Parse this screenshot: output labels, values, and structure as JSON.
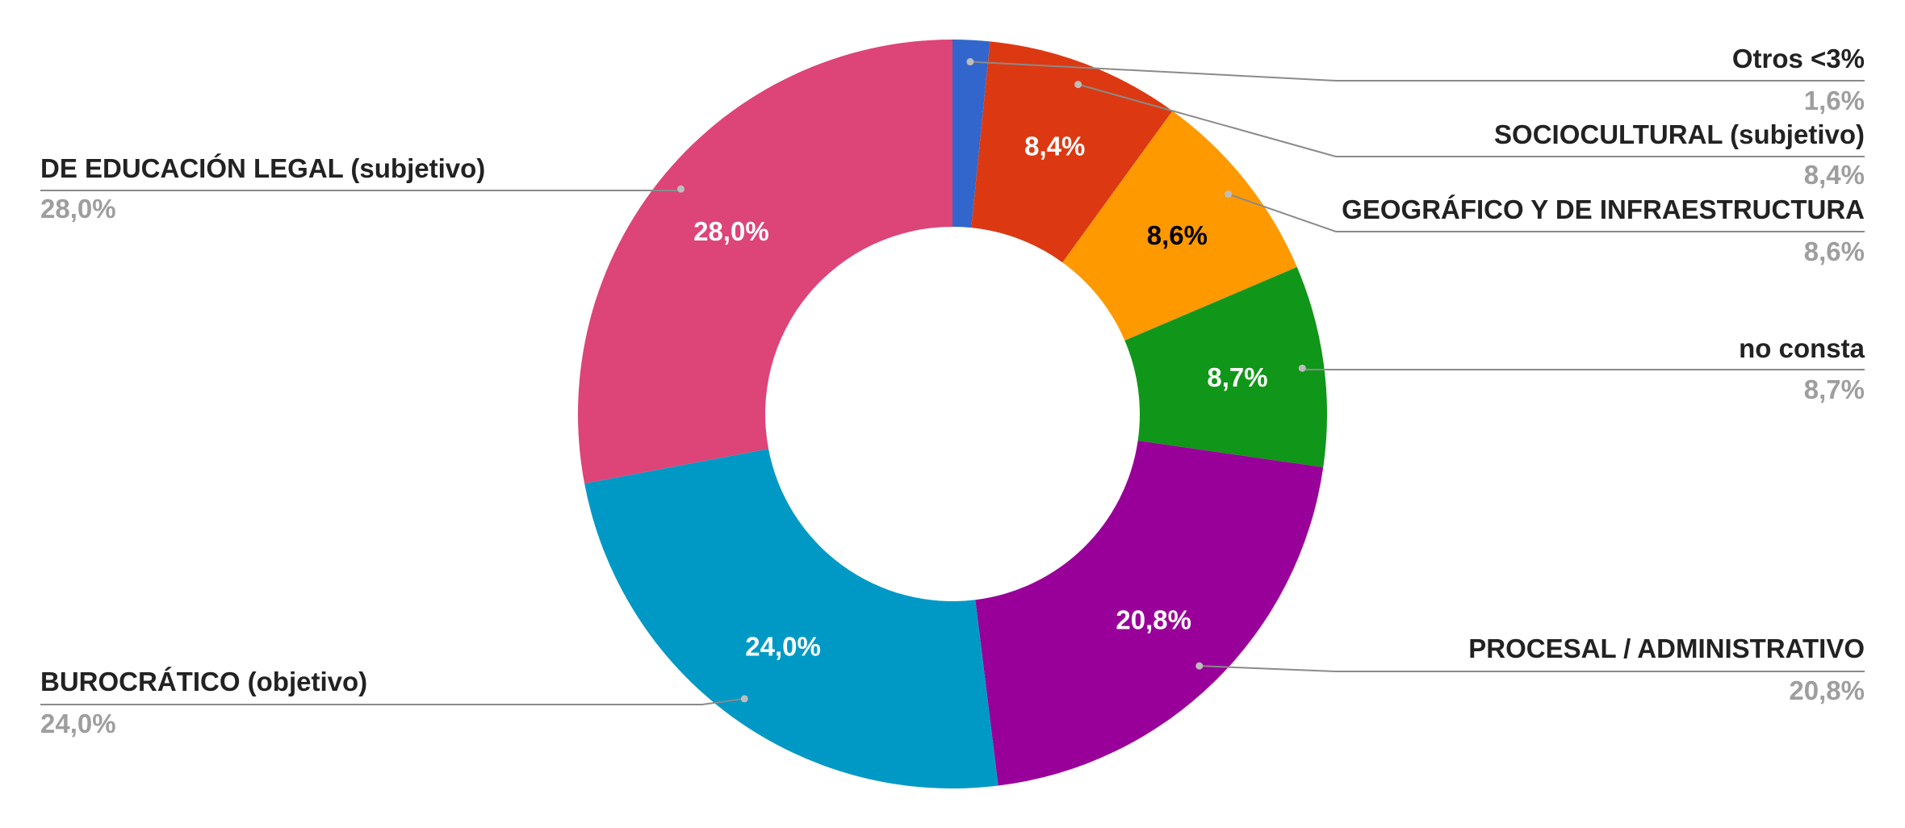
{
  "chart_data": {
    "type": "pie",
    "donut": true,
    "start_angle_deg": 0,
    "direction": "clockwise",
    "title": "",
    "slices": [
      {
        "label": "Otros <3%",
        "value": 1.6,
        "display": "1,6%",
        "inner_label": "",
        "color": "#3366cc",
        "inner_text_color": "#ffffff",
        "legend_side": "right"
      },
      {
        "label": "SOCIOCULTURAL (subjetivo)",
        "value": 8.4,
        "display": "8,4%",
        "inner_label": "8,4%",
        "color": "#dc3912",
        "inner_text_color": "#ffffff",
        "legend_side": "right"
      },
      {
        "label": "GEOGRÁFICO Y DE INFRAESTRUCTURA",
        "value": 8.6,
        "display": "8,6%",
        "inner_label": "8,6%",
        "color": "#ff9900",
        "inner_text_color": "#000000",
        "legend_side": "right"
      },
      {
        "label": "no consta",
        "value": 8.7,
        "display": "8,7%",
        "inner_label": "8,7%",
        "color": "#109618",
        "inner_text_color": "#ffffff",
        "legend_side": "right"
      },
      {
        "label": "PROCESAL / ADMINISTRATIVO",
        "value": 20.8,
        "display": "20,8%",
        "inner_label": "20,8%",
        "color": "#990099",
        "inner_text_color": "#ffffff",
        "legend_side": "right"
      },
      {
        "label": "BUROCRÁTICO (objetivo)",
        "value": 24.0,
        "display": "24,0%",
        "inner_label": "24,0%",
        "color": "#0099c6",
        "inner_text_color": "#ffffff",
        "legend_side": "left"
      },
      {
        "label": "DE EDUCACIÓN LEGAL (subjetivo)",
        "value": 28.0,
        "display": "28,0%",
        "inner_label": "28,0%",
        "color": "#dd4477",
        "inner_text_color": "#ffffff",
        "legend_side": "left"
      }
    ]
  }
}
